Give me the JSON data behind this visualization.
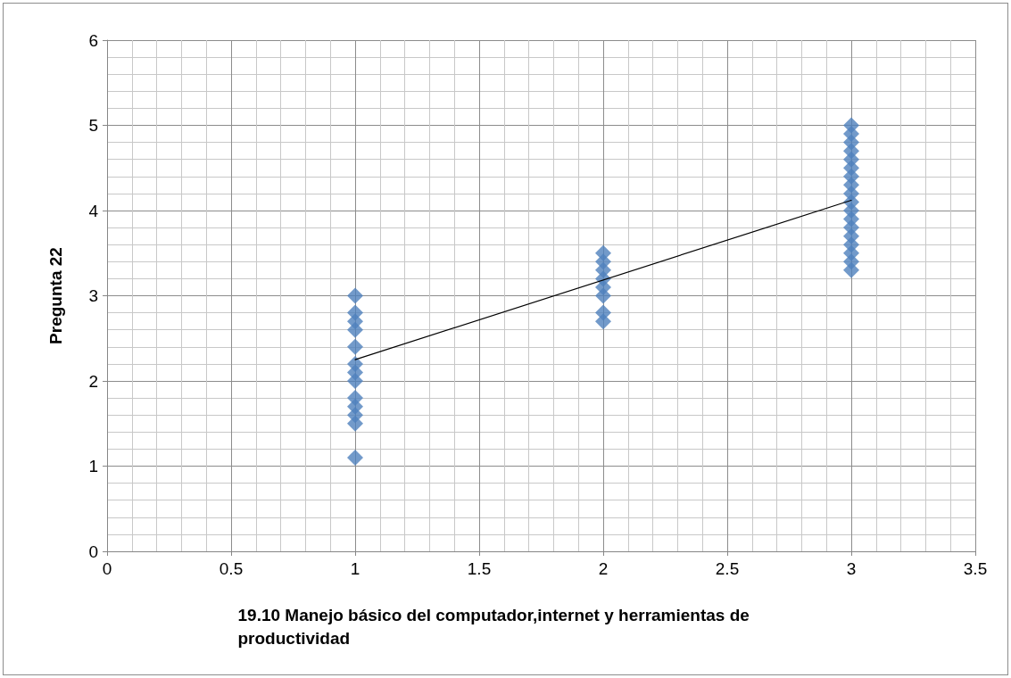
{
  "chart_data": {
    "type": "scatter",
    "xlabel": "19.10 Manejo básico del computador,internet y herramientas de productividad",
    "ylabel": "Pregunta 22",
    "series": [
      {
        "color": "#4f81bd",
        "marker": "diamond",
        "x": [
          1,
          1,
          1,
          1,
          1,
          1,
          1,
          1,
          1,
          1,
          1,
          1,
          1,
          2,
          2,
          2,
          2,
          2,
          2,
          2,
          2,
          3,
          3,
          3,
          3,
          3,
          3,
          3,
          3,
          3,
          3,
          3,
          3,
          3,
          3,
          3,
          3,
          3,
          3
        ],
        "values": [
          3.0,
          2.8,
          2.7,
          2.6,
          2.4,
          2.2,
          2.1,
          2.0,
          1.8,
          1.7,
          1.6,
          1.5,
          1.1,
          3.5,
          3.4,
          3.3,
          3.2,
          3.1,
          3.0,
          2.8,
          2.7,
          5.0,
          4.9,
          4.8,
          4.7,
          4.6,
          4.5,
          4.4,
          4.3,
          4.2,
          4.1,
          4.0,
          3.9,
          3.8,
          3.7,
          3.6,
          3.5,
          3.4,
          3.3
        ]
      },
      {
        "type": "line",
        "color": "#000000",
        "marker": "none",
        "x": [
          1,
          3
        ],
        "values": [
          2.25,
          4.12
        ]
      }
    ],
    "xlim": [
      0,
      3.5
    ],
    "xticks": [
      0,
      0.5,
      1,
      1.5,
      2,
      2.5,
      3,
      3.5
    ],
    "ylim": [
      0,
      6
    ],
    "yticks": [
      0,
      1,
      2,
      3,
      4,
      5,
      6
    ],
    "grid": true
  }
}
